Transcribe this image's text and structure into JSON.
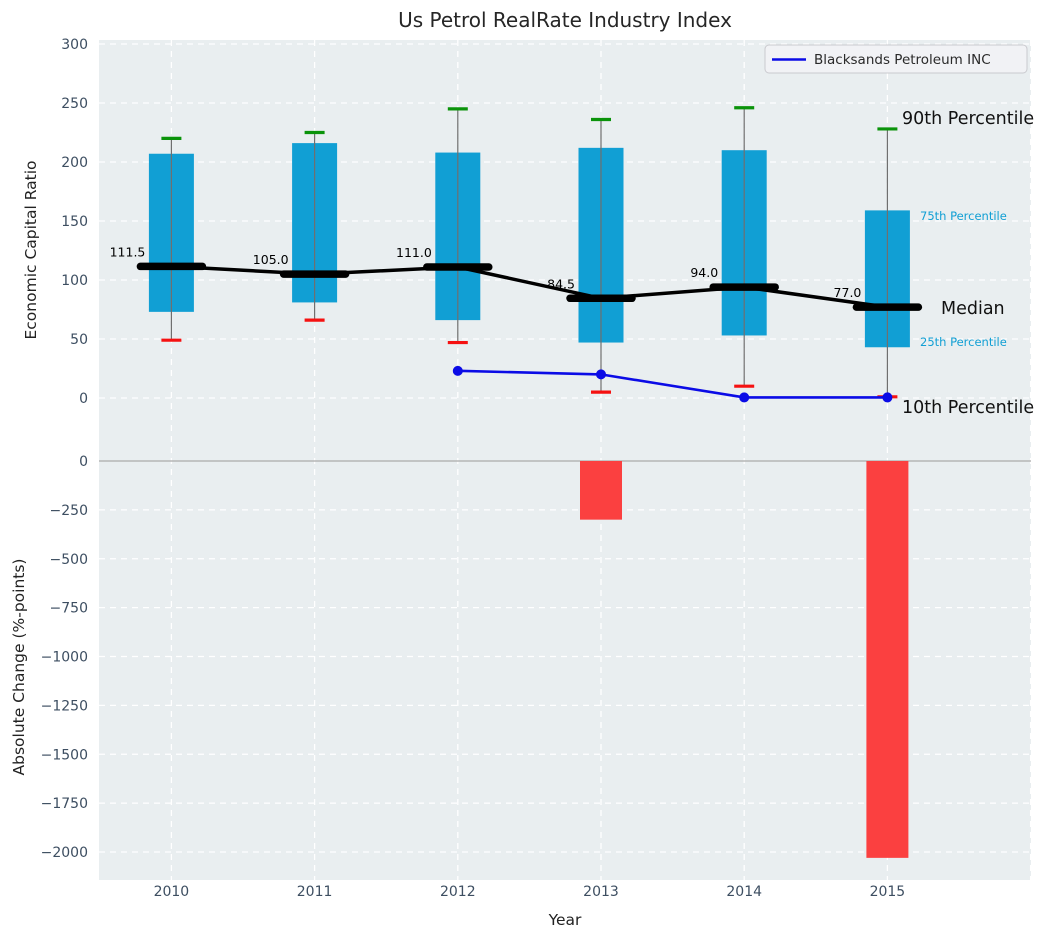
{
  "title": "Us Petrol RealRate Industry Index",
  "legend": {
    "label": "Blacksands Petroleum INC"
  },
  "annotations": {
    "p90": "90th Percentile",
    "p75": "75th Percentile",
    "median": "Median",
    "p25": "25th Percentile",
    "p10": "10th Percentile"
  },
  "top_axis": {
    "label": "Economic Capital Ratio",
    "ticks": [
      {
        "label": "0",
        "value": 0
      },
      {
        "label": "50",
        "value": 50
      },
      {
        "label": "100",
        "value": 100
      },
      {
        "label": "150",
        "value": 150
      },
      {
        "label": "200",
        "value": 200
      },
      {
        "label": "250",
        "value": 250
      },
      {
        "label": "300",
        "value": 300
      }
    ]
  },
  "bottom_axis": {
    "label": "Absolute Change (%-points)",
    "ticks": [
      {
        "label": "0",
        "value": 0
      },
      {
        "label": "−250",
        "value": -250
      },
      {
        "label": "−500",
        "value": -500
      },
      {
        "label": "−750",
        "value": -750
      },
      {
        "label": "−1000",
        "value": -1000
      },
      {
        "label": "−1250",
        "value": -1250
      },
      {
        "label": "−1500",
        "value": -1500
      },
      {
        "label": "−1750",
        "value": -1750
      },
      {
        "label": "−2000",
        "value": -2000
      }
    ]
  },
  "x_axis": {
    "label": "Year",
    "categories": [
      "2010",
      "2011",
      "2012",
      "2013",
      "2014",
      "2015"
    ]
  },
  "colors": {
    "box": "#119fd4",
    "bar_negative": "#fb4040",
    "cap_high": "#0a930a",
    "cap_low": "#f51111",
    "median": "#000000",
    "company_line": "#0b0be6",
    "annotation_cyan": "#119fd4",
    "tick_text": "#3d4e61",
    "panel_bg": "#e9eef0",
    "grid": "#ffffff",
    "zero_line": "#b5b5b5"
  },
  "chart_data": [
    {
      "type": "boxplot+line",
      "title": "Us Petrol RealRate Industry Index",
      "ylabel": "Economic Capital Ratio",
      "ylim": [
        -42,
        305
      ],
      "grid": true,
      "categories": [
        "2010",
        "2011",
        "2012",
        "2013",
        "2014",
        "2015"
      ],
      "boxes": [
        {
          "year": "2010",
          "p90": 220,
          "p75": 207,
          "median": 111.5,
          "p25": 73,
          "p10": 49
        },
        {
          "year": "2011",
          "p90": 225,
          "p75": 216,
          "median": 105.0,
          "p25": 81,
          "p10": 66
        },
        {
          "year": "2012",
          "p90": 245,
          "p75": 208,
          "median": 111.0,
          "p25": 66,
          "p10": 47
        },
        {
          "year": "2013",
          "p90": 236,
          "p75": 212,
          "median": 84.5,
          "p25": 47,
          "p10": 5
        },
        {
          "year": "2014",
          "p90": 246,
          "p75": 210,
          "median": 94.0,
          "p25": 53,
          "p10": 10
        },
        {
          "year": "2015",
          "p90": 228,
          "p75": 159,
          "median": 77.0,
          "p25": 43,
          "p10": 1
        }
      ],
      "median_labels": [
        "111.5",
        "105.0",
        "111.0",
        "84.5",
        "94.0",
        "77.0"
      ],
      "series": [
        {
          "name": "Blacksands Petroleum INC",
          "x": [
            "2012",
            "2013",
            "2014",
            "2015"
          ],
          "y": [
            23,
            20,
            0.5,
            0.5
          ]
        }
      ],
      "legend_position": "upper right"
    },
    {
      "type": "bar",
      "ylabel": "Absolute Change (%-points)",
      "xlabel": "Year",
      "ylim": [
        -2100,
        60
      ],
      "grid": true,
      "categories": [
        "2010",
        "2011",
        "2012",
        "2013",
        "2014",
        "2015"
      ],
      "values": [
        null,
        null,
        null,
        -300,
        null,
        -2030
      ]
    }
  ]
}
